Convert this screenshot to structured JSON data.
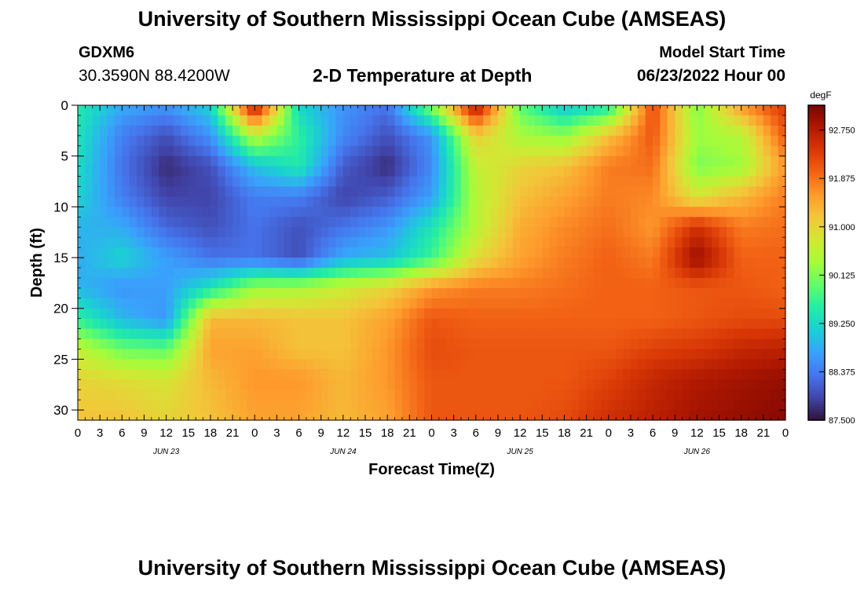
{
  "header": {
    "title_top": "University of Southern Mississippi Ocean Cube (AMSEAS)",
    "title_bottom": "University of Southern Mississippi Ocean Cube (AMSEAS)",
    "station_id": "GDXM6",
    "station_location": "30.3590N  88.4200W",
    "plot_title": "2-D Temperature at Depth",
    "start_label": "Model Start Time",
    "start_value": "06/23/2022 Hour 00"
  },
  "chart_data": {
    "type": "heatmap",
    "xlabel": "Forecast Time(Z)",
    "ylabel": "Depth (ft)",
    "x_hours": [
      0,
      96
    ],
    "x_tick_step_hours": 3,
    "x_tick_labels": [
      "0",
      "3",
      "6",
      "9",
      "12",
      "15",
      "18",
      "21",
      "0",
      "3",
      "6",
      "9",
      "12",
      "15",
      "18",
      "21",
      "0",
      "3",
      "6",
      "9",
      "12",
      "15",
      "18",
      "21",
      "0",
      "3",
      "6",
      "9",
      "12",
      "15",
      "18",
      "21",
      "0"
    ],
    "date_labels": [
      {
        "label": "JUN 23",
        "hour": 12
      },
      {
        "label": "JUN 24",
        "hour": 36
      },
      {
        "label": "JUN 25",
        "hour": 60
      },
      {
        "label": "JUN 26",
        "hour": 84
      }
    ],
    "ylim": [
      0,
      31
    ],
    "y_inverted": true,
    "y_ticks": [
      0,
      5,
      10,
      15,
      20,
      25,
      30
    ],
    "colorbar": {
      "unit": "degF",
      "min": 87.5,
      "max": 93.2,
      "ticks": [
        "92.750",
        "91.875",
        "91.000",
        "90.125",
        "89.250",
        "88.375",
        "87.500"
      ],
      "tick_values": [
        92.75,
        91.875,
        91.0,
        90.125,
        89.25,
        88.375,
        87.5
      ],
      "colormap": [
        "#30123b",
        "#4145ab",
        "#4675ed",
        "#39a2fc",
        "#1bcfd4",
        "#24eca6",
        "#61fc6c",
        "#a4fc3b",
        "#d1e834",
        "#f3c63a",
        "#fe9b2d",
        "#f36315",
        "#d93806",
        "#b11901",
        "#7a0402"
      ]
    },
    "depths_ft": [
      0,
      3,
      6,
      9,
      12,
      15,
      18,
      21,
      24,
      27,
      31
    ],
    "times_hours": [
      0,
      6,
      12,
      18,
      24,
      30,
      36,
      42,
      48,
      54,
      60,
      66,
      72,
      78,
      84,
      90,
      96
    ],
    "temperature_degF": [
      [
        89.5,
        88.8,
        88.6,
        89.2,
        92.9,
        89.2,
        88.6,
        88.3,
        90.2,
        92.9,
        89.9,
        89.0,
        89.4,
        92.2,
        90.1,
        91.6,
        92.4
      ],
      [
        89.4,
        88.4,
        88.0,
        88.6,
        90.6,
        89.6,
        88.5,
        88.0,
        88.6,
        91.1,
        90.4,
        90.2,
        91.2,
        92.1,
        90.3,
        90.5,
        92.1
      ],
      [
        89.3,
        88.3,
        87.7,
        88.0,
        89.0,
        89.5,
        88.1,
        87.7,
        88.5,
        90.6,
        91.0,
        91.2,
        91.8,
        91.9,
        90.1,
        90.3,
        91.6
      ],
      [
        89.2,
        88.4,
        87.9,
        87.9,
        88.4,
        88.4,
        87.9,
        88.1,
        88.7,
        90.5,
        91.2,
        91.5,
        91.8,
        91.7,
        90.8,
        91.3,
        91.8
      ],
      [
        88.9,
        88.8,
        88.2,
        88.0,
        88.3,
        88.0,
        88.3,
        88.6,
        89.4,
        90.5,
        91.4,
        91.7,
        91.9,
        91.6,
        92.5,
        91.8,
        91.9
      ],
      [
        88.8,
        89.2,
        88.7,
        88.3,
        88.3,
        88.0,
        88.8,
        89.0,
        89.7,
        90.9,
        91.5,
        91.8,
        92.0,
        91.8,
        93.0,
        92.0,
        92.0
      ],
      [
        88.9,
        88.6,
        88.7,
        89.4,
        90.3,
        90.4,
        90.7,
        91.0,
        91.6,
        91.8,
        91.8,
        91.9,
        92.0,
        92.0,
        92.1,
        92.1,
        92.0
      ],
      [
        89.6,
        88.9,
        88.6,
        91.3,
        91.3,
        91.2,
        91.2,
        91.5,
        92.1,
        92.0,
        92.0,
        92.0,
        92.0,
        92.0,
        92.1,
        92.2,
        92.2
      ],
      [
        90.6,
        90.0,
        89.9,
        91.5,
        91.5,
        91.2,
        91.2,
        91.6,
        92.2,
        92.1,
        92.1,
        92.1,
        92.1,
        92.3,
        92.4,
        92.6,
        92.7
      ],
      [
        91.0,
        90.9,
        90.8,
        91.3,
        91.6,
        91.6,
        91.3,
        91.6,
        92.1,
        92.1,
        92.1,
        92.1,
        92.3,
        92.6,
        92.8,
        92.9,
        93.0
      ],
      [
        91.2,
        91.2,
        91.0,
        91.2,
        91.5,
        91.5,
        91.3,
        91.5,
        92.1,
        92.1,
        92.1,
        92.2,
        92.5,
        92.7,
        92.9,
        93.0,
        93.1
      ]
    ]
  }
}
